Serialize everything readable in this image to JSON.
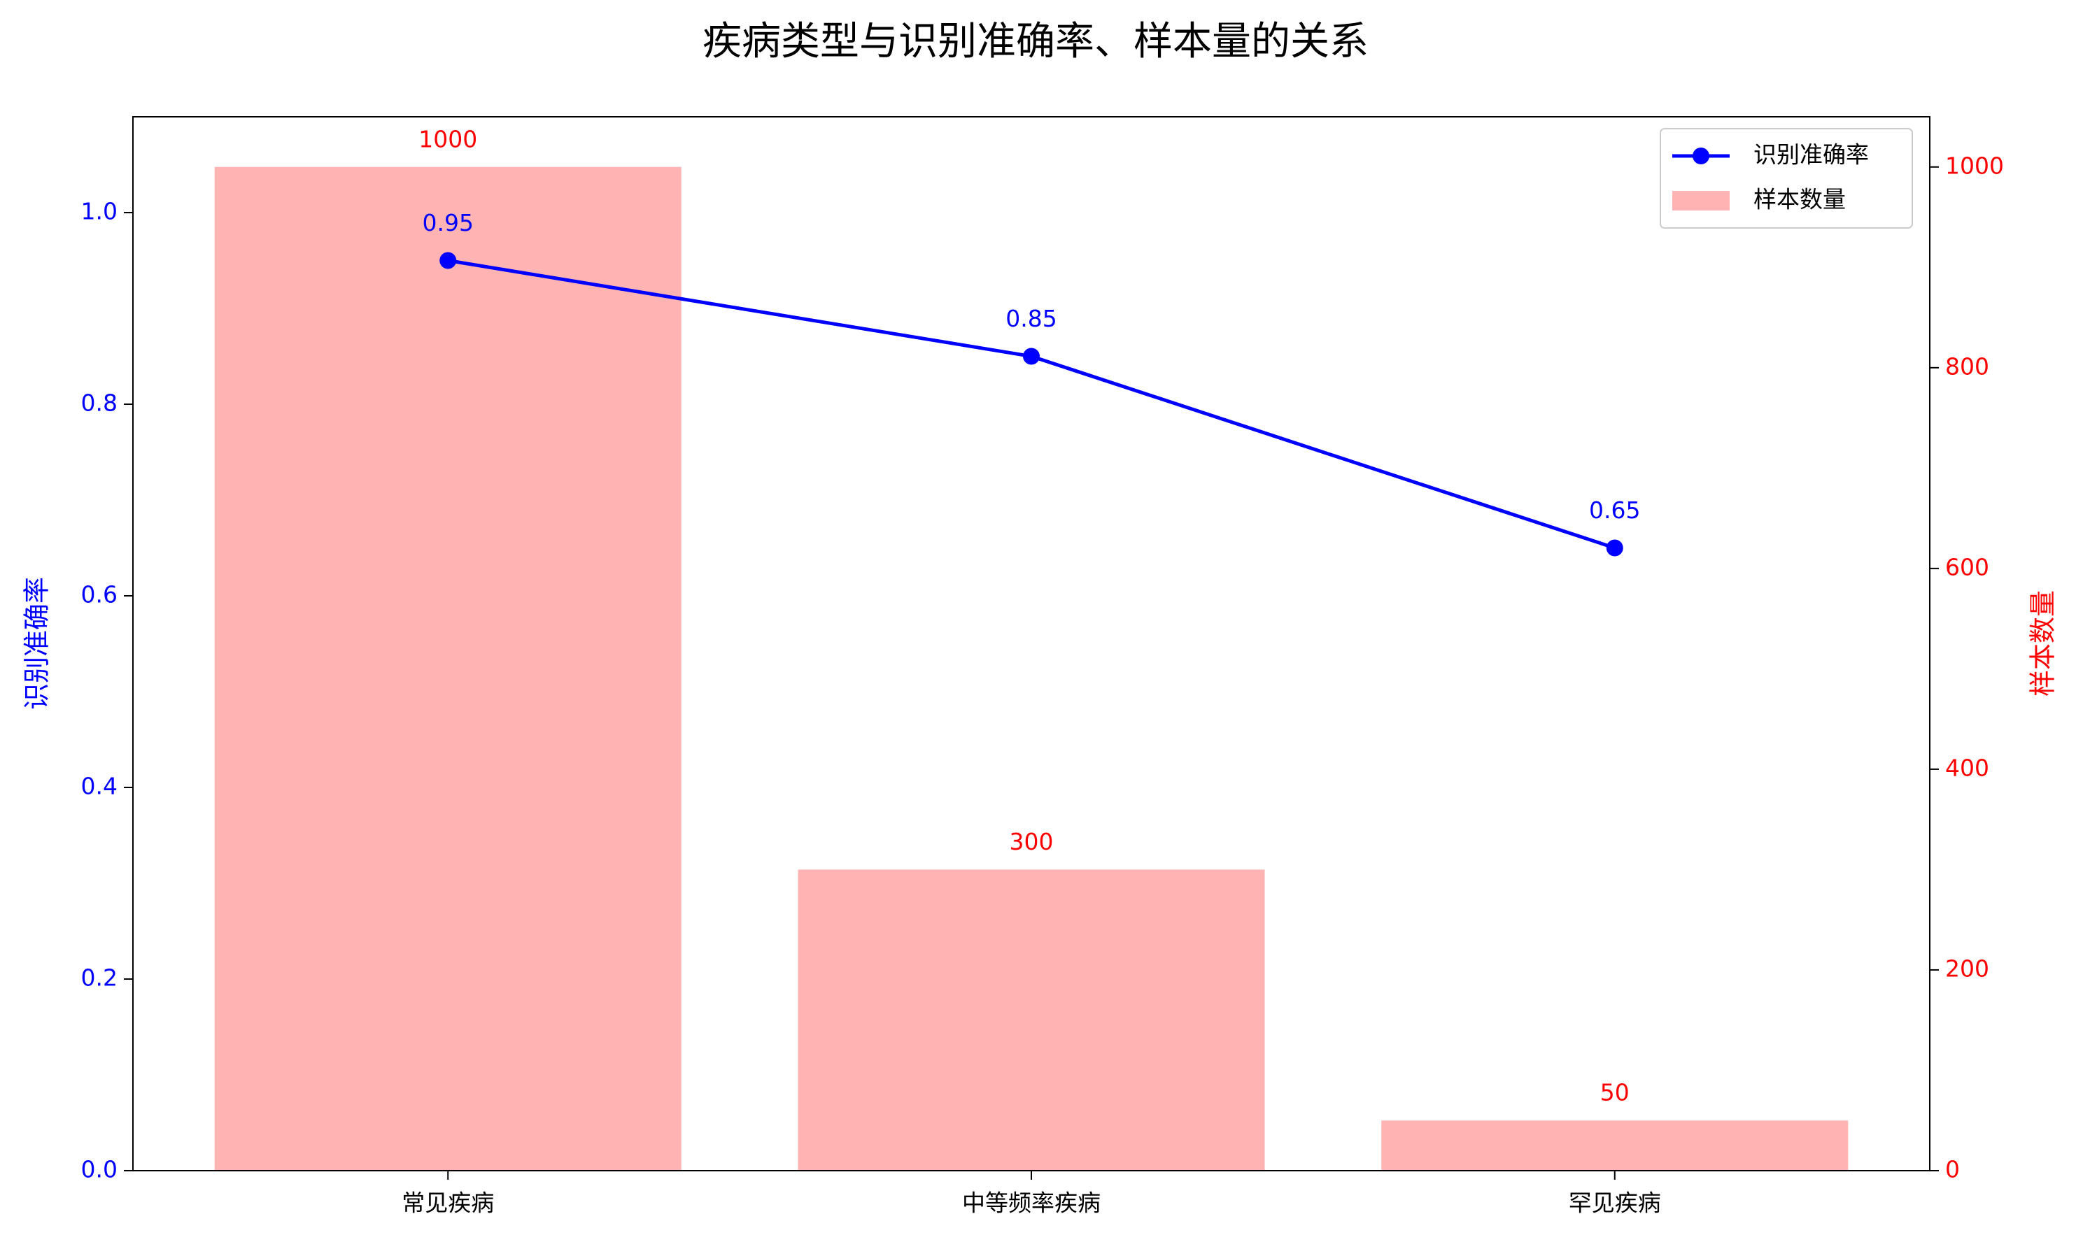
{
  "chart_data": {
    "type": "combo",
    "title": "疾病类型与识别准确率、样本量的关系",
    "categories": [
      "常见疾病",
      "中等频率疾病",
      "罕见疾病"
    ],
    "ylabel": "识别准确率",
    "y2label": "样本数量",
    "ylim": [
      0,
      1.1
    ],
    "yticks": [
      {
        "value": 0,
        "label": "0.0"
      },
      0.2,
      0.4,
      0.6,
      0.8,
      {
        "value": 1,
        "label": "1.0"
      }
    ],
    "y2lim": [
      0,
      1050
    ],
    "y2ticks": [
      0,
      200,
      400,
      600,
      800,
      1000
    ],
    "ycolor": "#0000ff",
    "y2color": "#ff0000",
    "legend": "upper right",
    "series": [
      {
        "name": "识别准确率",
        "type": "line",
        "color": "#0000ff",
        "values": [
          0.95,
          0.85,
          0.65
        ]
      },
      {
        "name": "样本数量",
        "type": "bar",
        "axis": "y2",
        "color": "#ffb3b3",
        "label_color": "#ff0000",
        "values": [
          1000,
          300,
          50
        ]
      }
    ]
  }
}
